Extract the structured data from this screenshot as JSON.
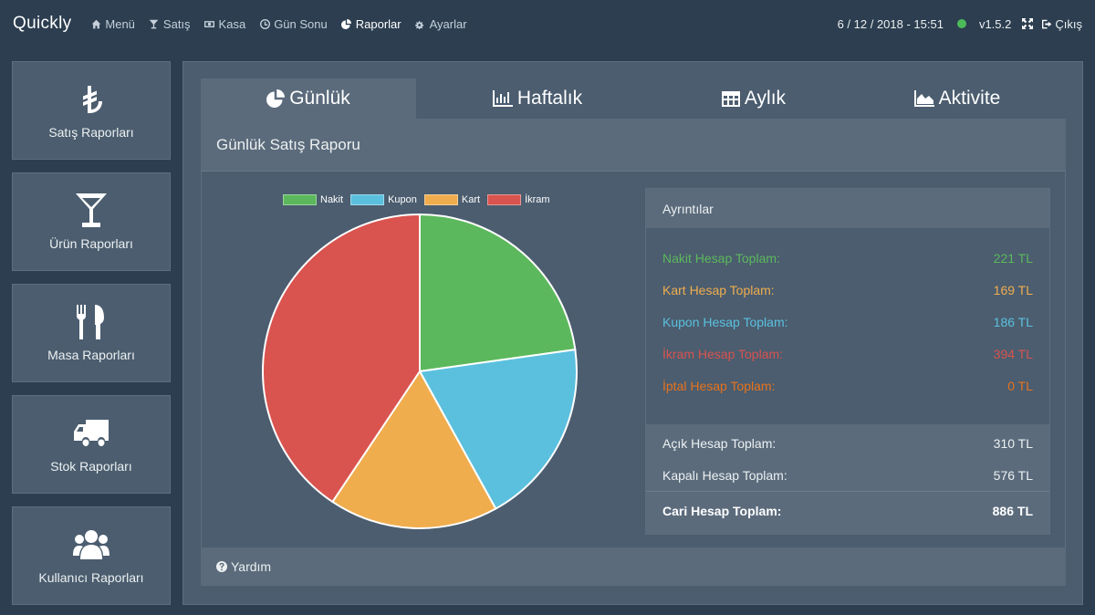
{
  "app": {
    "title": "Quickly"
  },
  "nav": [
    {
      "label": "Menü",
      "icon": "home-icon"
    },
    {
      "label": "Satış",
      "icon": "cocktail-icon"
    },
    {
      "label": "Kasa",
      "icon": "money-icon"
    },
    {
      "label": "Gün Sonu",
      "icon": "clock-icon"
    },
    {
      "label": "Raporlar",
      "icon": "pie-chart-icon",
      "active": true
    },
    {
      "label": "Ayarlar",
      "icon": "cogs-icon"
    }
  ],
  "topright": {
    "datetime": "6 / 12 / 2018 - 15:51",
    "status_color": "#4cbb5a",
    "version": "v1.5.2",
    "exit_label": "Çıkış"
  },
  "sidebar": [
    {
      "label": "Satış Raporları",
      "icon": "lira-icon"
    },
    {
      "label": "Ürün Raporları",
      "icon": "cocktail-glass-icon"
    },
    {
      "label": "Masa Raporları",
      "icon": "cutlery-icon"
    },
    {
      "label": "Stok Raporları",
      "icon": "truck-icon"
    },
    {
      "label": "Kullanıcı Raporları",
      "icon": "users-icon"
    }
  ],
  "tabs": [
    {
      "label": "Günlük",
      "icon": "pie-chart-icon",
      "active": true
    },
    {
      "label": "Haftalık",
      "icon": "bar-chart-icon"
    },
    {
      "label": "Aylık",
      "icon": "table-icon"
    },
    {
      "label": "Aktivite",
      "icon": "area-chart-icon"
    }
  ],
  "panel": {
    "title": "Günlük Satış Raporu",
    "help_label": "Yardım"
  },
  "chart_data": {
    "type": "pie",
    "categories": [
      "Nakit",
      "Kupon",
      "Kart",
      "İkram"
    ],
    "values": [
      221,
      186,
      169,
      394
    ],
    "colors": [
      "#5cb85c",
      "#5bc0de",
      "#f0ad4e",
      "#d9534f"
    ],
    "legend_position": "top"
  },
  "details": {
    "title": "Ayrıntılar",
    "rows": [
      {
        "label": "Nakit Hesap Toplam:",
        "value": "221 TL",
        "color": "#5cb85c"
      },
      {
        "label": "Kart Hesap Toplam:",
        "value": "169 TL",
        "color": "#f0ad4e"
      },
      {
        "label": "Kupon Hesap Toplam:",
        "value": "186 TL",
        "color": "#5bc0de"
      },
      {
        "label": "İkram Hesap Toplam:",
        "value": "394 TL",
        "color": "#d9534f"
      },
      {
        "label": "İptal Hesap Toplam:",
        "value": "0 TL",
        "color": "#e8721c"
      }
    ],
    "summary": [
      {
        "label": "Açık Hesap Toplam:",
        "value": "310 TL"
      },
      {
        "label": "Kapalı Hesap Toplam:",
        "value": "576 TL"
      }
    ],
    "total": {
      "label": "Cari Hesap Toplam:",
      "value": "886 TL"
    }
  }
}
